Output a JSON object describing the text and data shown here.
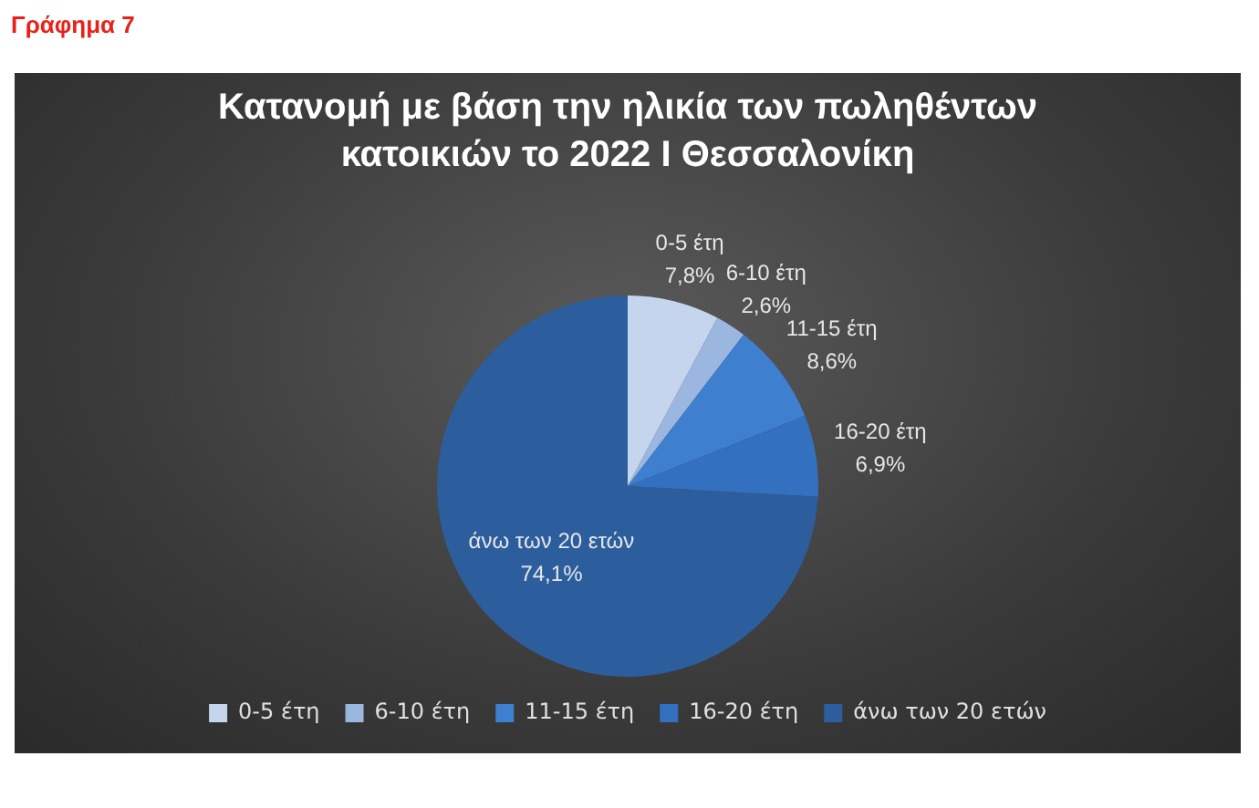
{
  "chart_data": {
    "type": "pie",
    "title": "Κατανομή με βάση την ηλικία των πωληθέντων κατοικιών το 2022 Ι Θεσσαλονίκη",
    "annotations": [
      "Γράφημα 7"
    ],
    "categories": [
      "0-5 έτη",
      "6-10 έτη",
      "11-15 έτη",
      "16-20 έτη",
      "άνω των 20 ετών"
    ],
    "values": [
      7.8,
      2.6,
      8.6,
      6.9,
      74.1
    ],
    "value_labels": [
      "7,8%",
      "2,6%",
      "8,6%",
      "6,9%",
      "74,1%"
    ],
    "colors": [
      "#c5d5ee",
      "#9bb7e0",
      "#3f7fd0",
      "#3470c0",
      "#2c5e9e"
    ],
    "legend": "bottom"
  }
}
